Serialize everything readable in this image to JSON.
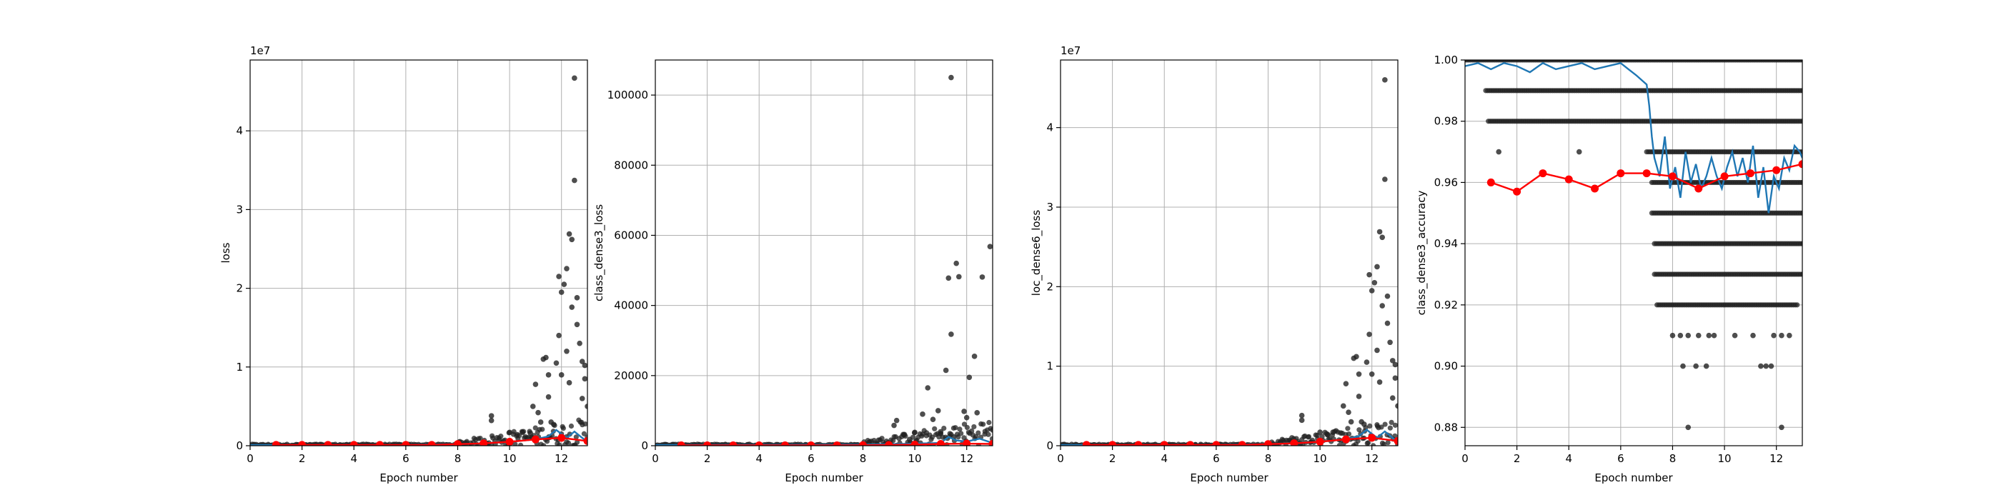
{
  "figure": {
    "description_panels": 4
  },
  "colors": {
    "scatter": "#222222",
    "batch_line": "#1f77b4",
    "epoch_line": "#ff0000",
    "grid": "#b0b0b0"
  },
  "chart_data": [
    {
      "type": "scatter",
      "title": "",
      "xlabel": "Epoch number",
      "ylabel": "loss",
      "offset_text": "1e7",
      "xlim": [
        0,
        13
      ],
      "ylim": [
        0,
        4.9
      ],
      "xticks": [
        0,
        2,
        4,
        6,
        8,
        10,
        12
      ],
      "yticks": [
        0,
        1,
        2,
        3,
        4
      ],
      "ytick_labels": [
        "0",
        "1",
        "2",
        "3",
        "4"
      ],
      "grid": true,
      "series": [
        {
          "kind": "points",
          "x": [
            9.3,
            9.3,
            10.0,
            10.3,
            10.5,
            10.8,
            11.0,
            11.2,
            11.3,
            11.4,
            11.5,
            11.6,
            11.7,
            11.8,
            11.9,
            12.0,
            12.0,
            12.1,
            12.2,
            12.3,
            12.4,
            12.4,
            12.5,
            12.5,
            12.6,
            12.6,
            12.7,
            12.8,
            12.9,
            12.9,
            13.0,
            11.9,
            11.5,
            12.3,
            12.8,
            10.9,
            11.1,
            12.2
          ],
          "y": [
            0.38,
            0.32,
            0.17,
            0.14,
            0.17,
            0.16,
            0.78,
            0.3,
            1.1,
            1.12,
            0.62,
            0.3,
            0.27,
            1.05,
            2.15,
            1.95,
            0.9,
            2.05,
            2.25,
            2.69,
            2.62,
            1.76,
            4.67,
            3.37,
            1.88,
            1.54,
            1.3,
            1.07,
            1.02,
            0.85,
            0.5,
            1.4,
            0.9,
            0.8,
            0.6,
            0.5,
            0.42,
            1.2
          ]
        },
        {
          "kind": "dense_band",
          "x_start": 0,
          "x_end": 13,
          "note": "many points near zero"
        },
        {
          "kind": "line_batch",
          "x": [
            0,
            6,
            8,
            9,
            10,
            11,
            11.5,
            11.8,
            12.0,
            12.2,
            12.5,
            12.8,
            13.0
          ],
          "y": [
            0.01,
            0.01,
            0.02,
            0.03,
            0.05,
            0.08,
            0.12,
            0.2,
            0.15,
            0.1,
            0.18,
            0.1,
            0.05
          ]
        },
        {
          "kind": "line_epoch",
          "x": [
            1,
            2,
            3,
            4,
            5,
            6,
            7,
            8,
            9,
            10,
            11,
            12,
            13
          ],
          "y": [
            0.01,
            0.01,
            0.01,
            0.01,
            0.01,
            0.01,
            0.01,
            0.02,
            0.03,
            0.05,
            0.08,
            0.1,
            0.06
          ]
        }
      ]
    },
    {
      "type": "scatter",
      "title": "",
      "xlabel": "Epoch number",
      "ylabel": "class_dense3_loss",
      "offset_text": "",
      "xlim": [
        0,
        13
      ],
      "ylim": [
        0,
        110000
      ],
      "xticks": [
        0,
        2,
        4,
        6,
        8,
        10,
        12
      ],
      "yticks": [
        0,
        20000,
        40000,
        60000,
        80000,
        100000
      ],
      "ytick_labels": [
        "0",
        "20000",
        "40000",
        "60000",
        "80000",
        "100000"
      ],
      "grid": true,
      "series": [
        {
          "kind": "points",
          "x": [
            9.2,
            9.3,
            9.6,
            9.8,
            10.0,
            10.3,
            10.5,
            10.7,
            10.9,
            11.0,
            11.2,
            11.3,
            11.4,
            11.4,
            11.6,
            11.7,
            11.9,
            12.1,
            12.3,
            12.4,
            12.6,
            12.9,
            13.0,
            11.5,
            12.0
          ],
          "y": [
            5800,
            7200,
            3200,
            1800,
            3800,
            9000,
            16500,
            7500,
            10000,
            4000,
            21500,
            47800,
            105000,
            31800,
            52000,
            48200,
            9800,
            19500,
            25500,
            9400,
            48100,
            56800,
            4500,
            2500,
            8000
          ]
        },
        {
          "kind": "dense_band",
          "x_start": 0,
          "x_end": 13,
          "note": "many points near zero"
        },
        {
          "kind": "line_batch",
          "x": [
            0,
            8,
            10,
            11,
            11.3,
            11.6,
            12,
            12.5,
            13
          ],
          "y": [
            200,
            300,
            600,
            800,
            2500,
            1500,
            1200,
            2000,
            800
          ]
        },
        {
          "kind": "line_epoch",
          "x": [
            1,
            2,
            3,
            4,
            5,
            6,
            7,
            8,
            9,
            10,
            11,
            12,
            13
          ],
          "y": [
            100,
            100,
            100,
            100,
            100,
            100,
            100,
            150,
            200,
            300,
            500,
            600,
            500
          ]
        }
      ]
    },
    {
      "type": "scatter",
      "title": "",
      "xlabel": "Epoch number",
      "ylabel": "loc_dense6_loss",
      "offset_text": "1e7",
      "xlim": [
        0,
        13
      ],
      "ylim": [
        0,
        4.85
      ],
      "xticks": [
        0,
        2,
        4,
        6,
        8,
        10,
        12
      ],
      "yticks": [
        0,
        1,
        2,
        3,
        4
      ],
      "ytick_labels": [
        "0",
        "1",
        "2",
        "3",
        "4"
      ],
      "grid": true,
      "series": [
        {
          "kind": "points",
          "x": [
            9.3,
            9.3,
            10.0,
            10.3,
            10.5,
            10.8,
            11.0,
            11.2,
            11.3,
            11.4,
            11.5,
            11.6,
            11.7,
            11.8,
            11.9,
            12.0,
            12.0,
            12.1,
            12.2,
            12.3,
            12.4,
            12.4,
            12.5,
            12.5,
            12.6,
            12.6,
            12.7,
            12.8,
            12.9,
            12.9,
            13.0,
            11.9,
            11.5,
            12.3,
            12.8,
            10.9,
            11.1,
            12.2
          ],
          "y": [
            0.38,
            0.32,
            0.17,
            0.14,
            0.17,
            0.16,
            0.78,
            0.3,
            1.1,
            1.12,
            0.62,
            0.3,
            0.27,
            1.05,
            2.15,
            1.95,
            0.9,
            2.05,
            2.25,
            2.69,
            2.62,
            1.76,
            4.6,
            3.35,
            1.88,
            1.54,
            1.3,
            1.07,
            1.02,
            0.85,
            0.5,
            1.4,
            0.9,
            0.8,
            0.6,
            0.5,
            0.42,
            1.2
          ]
        },
        {
          "kind": "dense_band",
          "x_start": 0,
          "x_end": 13,
          "note": "many points near zero"
        },
        {
          "kind": "line_batch",
          "x": [
            0,
            6,
            8,
            9,
            10,
            11,
            11.5,
            11.8,
            12.0,
            12.2,
            12.5,
            12.8,
            13.0
          ],
          "y": [
            0.01,
            0.01,
            0.02,
            0.03,
            0.05,
            0.08,
            0.12,
            0.2,
            0.15,
            0.1,
            0.18,
            0.1,
            0.05
          ]
        },
        {
          "kind": "line_epoch",
          "x": [
            1,
            2,
            3,
            4,
            5,
            6,
            7,
            8,
            9,
            10,
            11,
            12,
            13
          ],
          "y": [
            0.01,
            0.01,
            0.01,
            0.01,
            0.01,
            0.01,
            0.01,
            0.02,
            0.03,
            0.05,
            0.08,
            0.1,
            0.06
          ]
        }
      ]
    },
    {
      "type": "scatter",
      "title": "",
      "xlabel": "Epoch number",
      "ylabel": "class_dense3_accuracy",
      "offset_text": "",
      "xlim": [
        0,
        13
      ],
      "ylim": [
        0.874,
        1.0
      ],
      "xticks": [
        0,
        2,
        4,
        6,
        8,
        10,
        12
      ],
      "yticks": [
        0.88,
        0.9,
        0.92,
        0.94,
        0.96,
        0.98,
        1.0
      ],
      "ytick_labels": [
        "0.88",
        "0.90",
        "0.92",
        "0.94",
        "0.96",
        "0.98",
        "1.00"
      ],
      "grid": true,
      "series": [
        {
          "kind": "level_rows",
          "rows": [
            {
              "y": 1.0,
              "x_start": 0.0,
              "x_end": 13.0
            },
            {
              "y": 0.99,
              "x_start": 0.8,
              "x_end": 13.0
            },
            {
              "y": 0.98,
              "x_start": 0.9,
              "x_end": 13.0
            },
            {
              "y": 0.97,
              "x_start": 7.0,
              "x_end": 13.0
            },
            {
              "y": 0.96,
              "x_start": 7.2,
              "x_end": 13.0
            },
            {
              "y": 0.95,
              "x_start": 7.2,
              "x_end": 13.0
            },
            {
              "y": 0.94,
              "x_start": 7.3,
              "x_end": 13.0
            },
            {
              "y": 0.93,
              "x_start": 7.3,
              "x_end": 13.0
            },
            {
              "y": 0.92,
              "x_start": 7.4,
              "x_end": 12.8
            }
          ]
        },
        {
          "kind": "points",
          "x": [
            1.3,
            4.4,
            8.0,
            8.3,
            8.6,
            9.0,
            9.4,
            9.6,
            10.4,
            11.1,
            11.9,
            12.2,
            12.5,
            8.4,
            8.9,
            9.3,
            11.4,
            11.6,
            11.8,
            8.6,
            12.2
          ],
          "y": [
            0.97,
            0.97,
            0.91,
            0.91,
            0.91,
            0.91,
            0.91,
            0.91,
            0.91,
            0.91,
            0.91,
            0.91,
            0.91,
            0.9,
            0.9,
            0.9,
            0.9,
            0.9,
            0.9,
            0.88,
            0.88
          ]
        },
        {
          "kind": "line_batch",
          "x": [
            0,
            0.5,
            1,
            1.5,
            2,
            2.5,
            3,
            3.5,
            4,
            4.5,
            5,
            5.5,
            6,
            6.3,
            6.6,
            7.0,
            7.1,
            7.2,
            7.3,
            7.5,
            7.7,
            7.9,
            8.1,
            8.3,
            8.5,
            8.7,
            8.9,
            9.1,
            9.3,
            9.5,
            9.7,
            9.9,
            10.1,
            10.3,
            10.5,
            10.7,
            10.9,
            11.1,
            11.3,
            11.5,
            11.7,
            11.9,
            12.1,
            12.3,
            12.5,
            12.7,
            12.9,
            13.0
          ],
          "y": [
            0.998,
            0.999,
            0.997,
            0.999,
            0.998,
            0.996,
            0.999,
            0.997,
            0.998,
            0.999,
            0.997,
            0.998,
            0.999,
            0.997,
            0.995,
            0.992,
            0.985,
            0.975,
            0.968,
            0.962,
            0.975,
            0.958,
            0.965,
            0.955,
            0.97,
            0.96,
            0.966,
            0.958,
            0.962,
            0.968,
            0.962,
            0.958,
            0.965,
            0.97,
            0.962,
            0.968,
            0.96,
            0.972,
            0.955,
            0.965,
            0.95,
            0.962,
            0.958,
            0.968,
            0.964,
            0.972,
            0.97,
            0.968
          ]
        },
        {
          "kind": "line_epoch",
          "x": [
            1,
            2,
            3,
            4,
            5,
            6,
            7,
            8,
            9,
            10,
            11,
            12,
            13
          ],
          "y": [
            0.96,
            0.957,
            0.963,
            0.961,
            0.958,
            0.963,
            0.963,
            0.962,
            0.958,
            0.962,
            0.963,
            0.964,
            0.966
          ]
        }
      ]
    }
  ]
}
